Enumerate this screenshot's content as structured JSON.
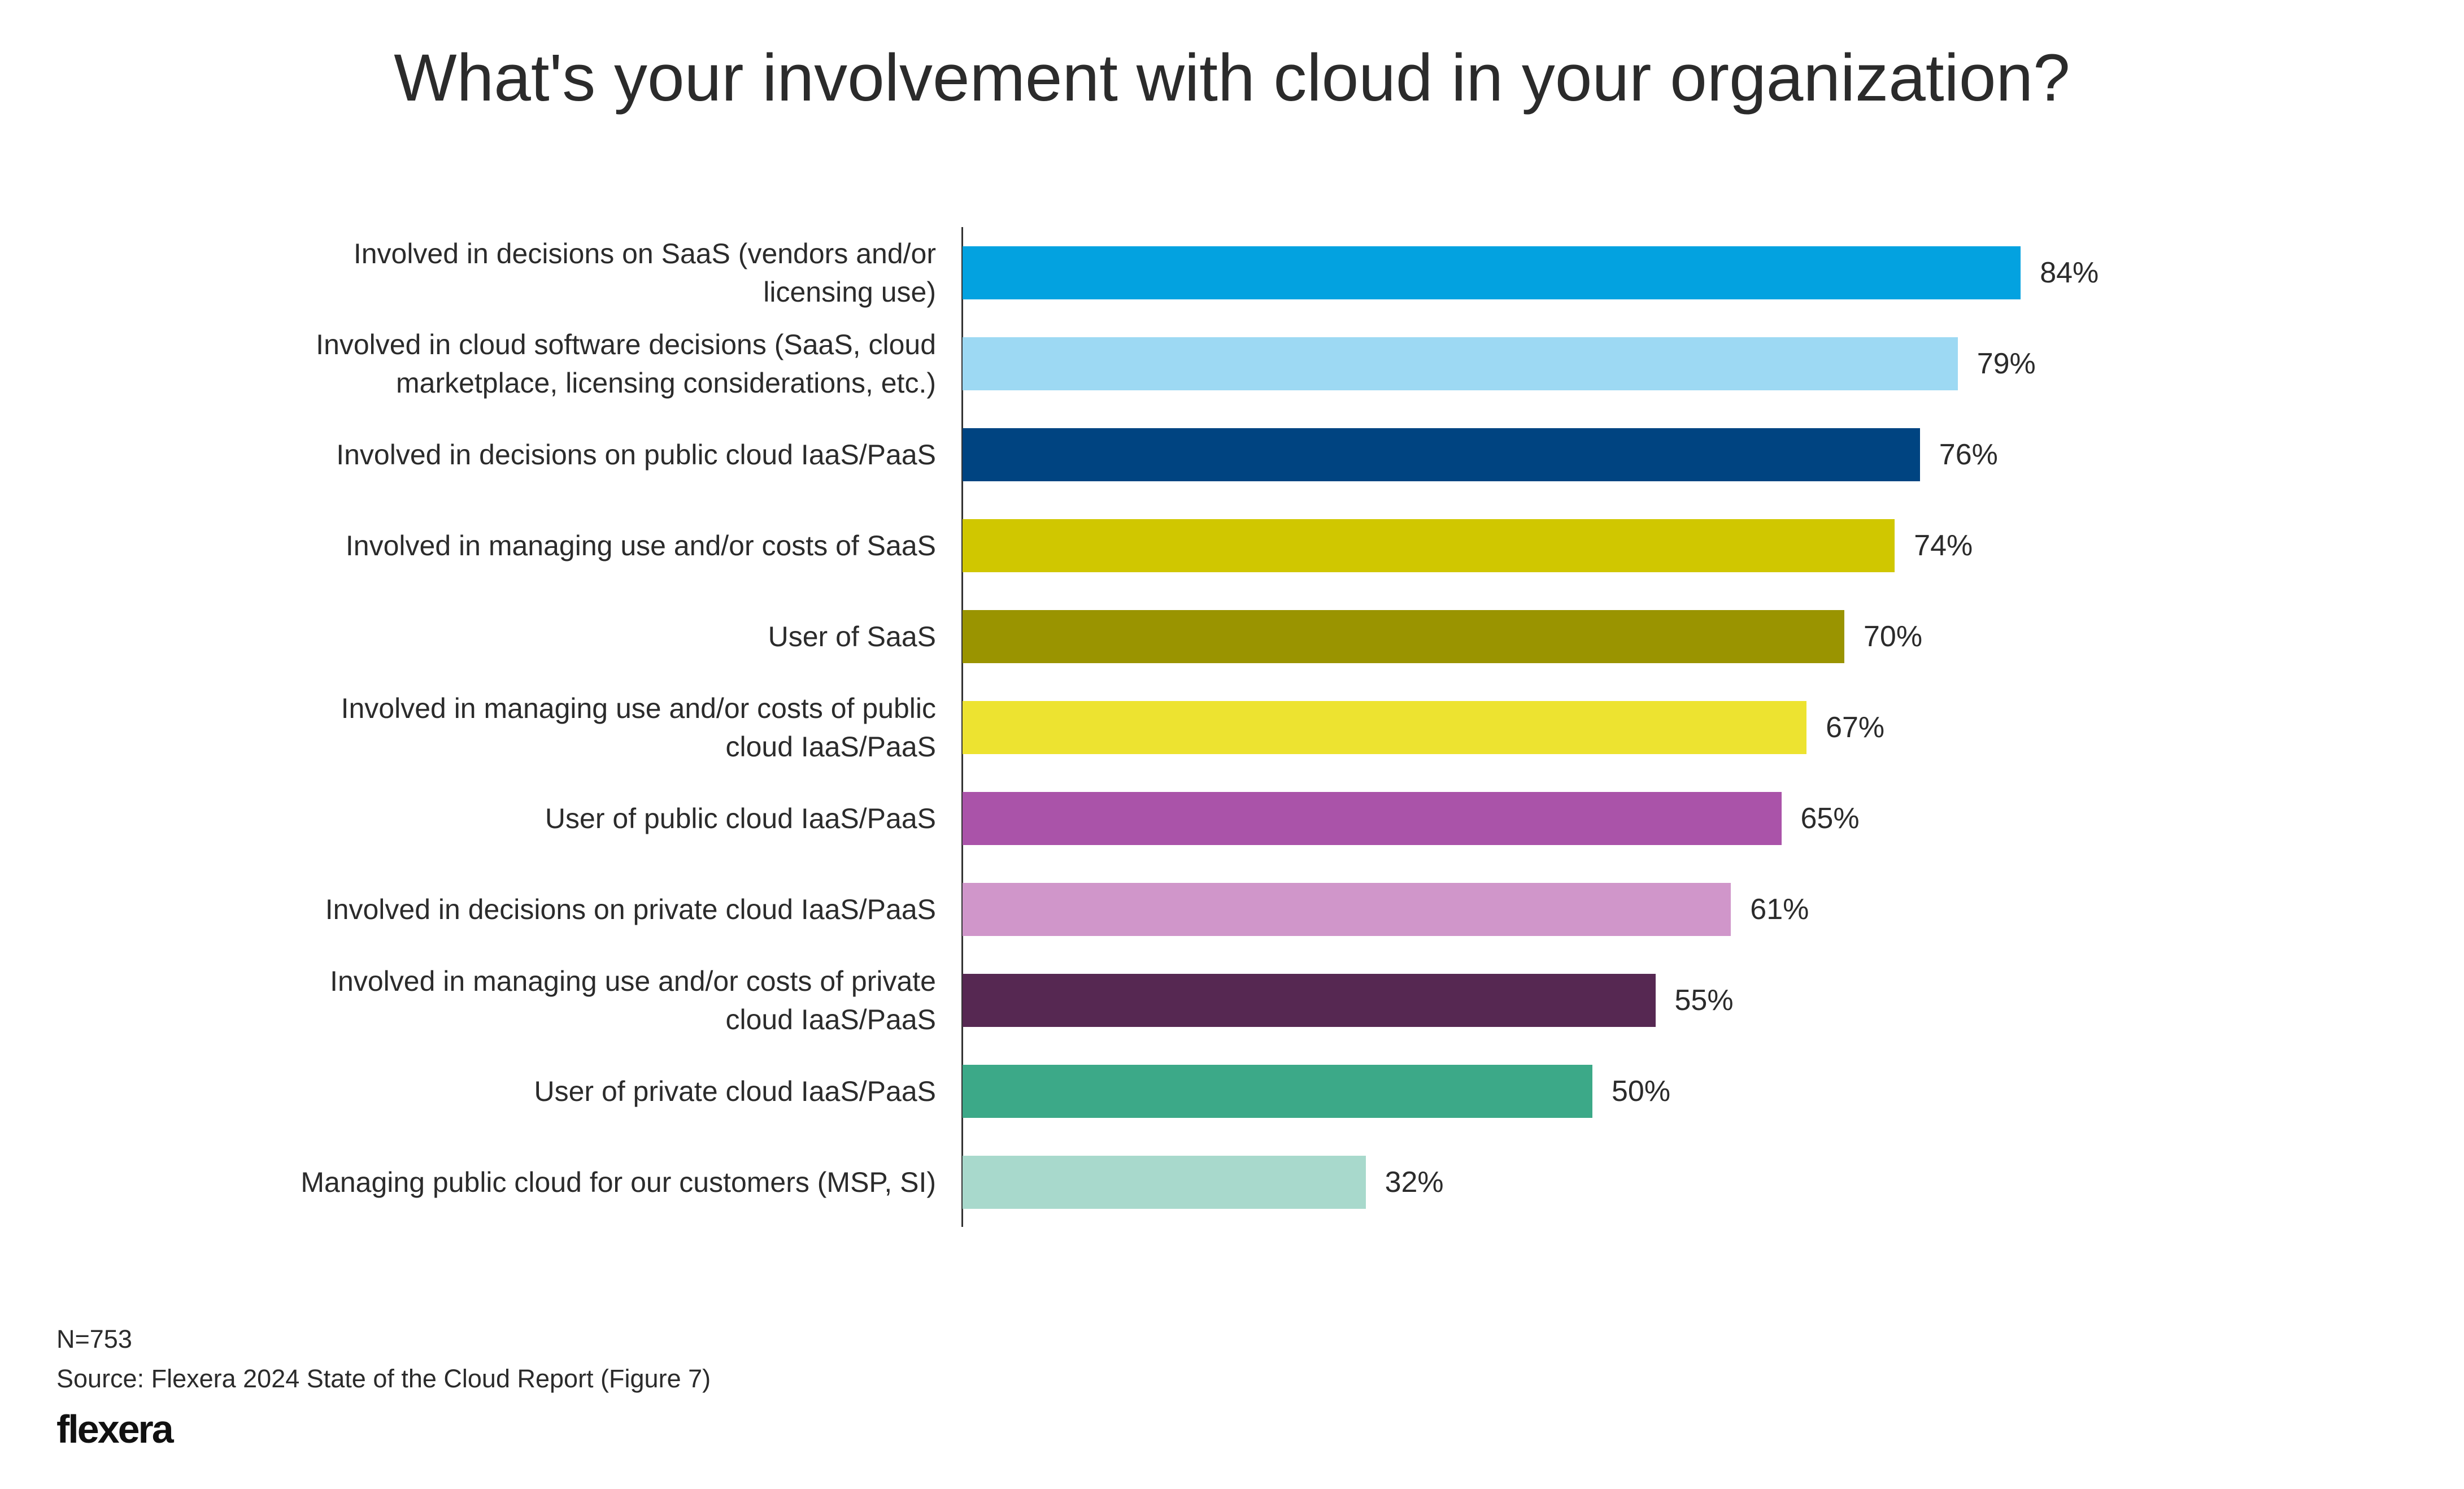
{
  "chart_data": {
    "type": "bar",
    "orientation": "horizontal",
    "title": "What's your involvement with cloud in your organization?",
    "xlabel": "",
    "ylabel": "",
    "xlim": [
      0,
      100
    ],
    "grid": false,
    "categories": [
      [
        "Involved in decisions on SaaS (vendors and/or",
        "licensing use)"
      ],
      [
        "Involved in cloud software decisions (SaaS, cloud",
        "marketplace, licensing considerations, etc.)"
      ],
      [
        "Involved in decisions on public cloud IaaS/PaaS"
      ],
      [
        "Involved in managing use and/or costs of SaaS"
      ],
      [
        "User of SaaS"
      ],
      [
        "Involved in managing use and/or costs of public",
        "cloud IaaS/PaaS"
      ],
      [
        "User of public cloud IaaS/PaaS"
      ],
      [
        "Involved in decisions on private cloud IaaS/PaaS"
      ],
      [
        "Involved in managing use and/or costs of private",
        "cloud IaaS/PaaS"
      ],
      [
        "User of private cloud IaaS/PaaS"
      ],
      [
        "Managing public cloud for our customers (MSP, SI)"
      ]
    ],
    "values": [
      84,
      79,
      76,
      74,
      70,
      67,
      65,
      61,
      55,
      50,
      32
    ],
    "value_labels": [
      "84%",
      "79%",
      "76%",
      "74%",
      "70%",
      "67%",
      "65%",
      "61%",
      "55%",
      "50%",
      "32%"
    ],
    "colors": [
      "#03A2E0",
      "#9DD9F3",
      "#004481",
      "#D0C700",
      "#9A9400",
      "#EDE330",
      "#AA53A9",
      "#D096CA",
      "#562852",
      "#3CA988",
      "#A8D9CC"
    ]
  },
  "footer": {
    "n": "N=753",
    "source": "Source: Flexera 2024 State of the Cloud Report (Figure 7)",
    "logo": "flexera"
  }
}
